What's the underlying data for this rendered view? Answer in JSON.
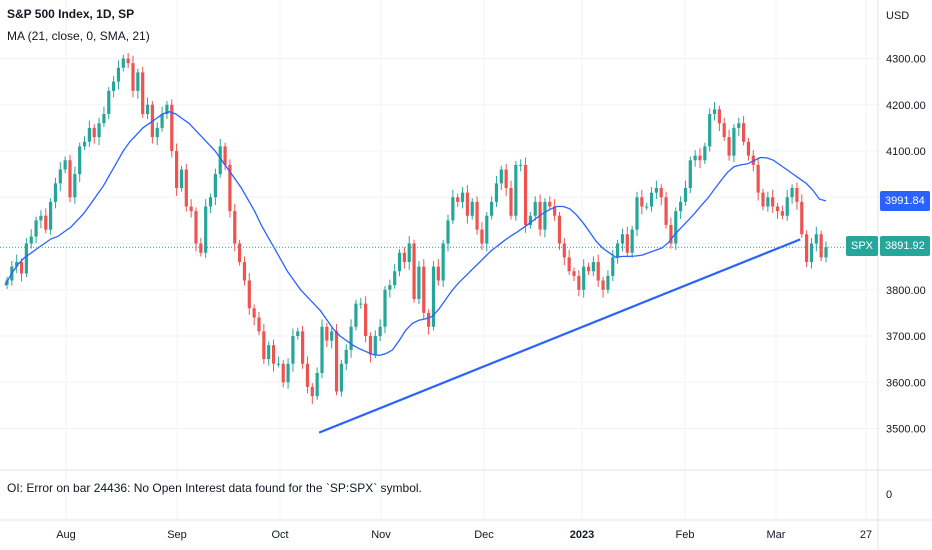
{
  "legend": {
    "title": "S&P 500 Index, 1D, SP",
    "ma": "MA (21, close, 0, SMA, 21)"
  },
  "oi_error": "OI: Error on bar 24436: No Open Interest data found for the `SP:SPX` symbol.",
  "currency": "USD",
  "tags": {
    "ma_value": "3991.84",
    "symbol": "SPX",
    "price": "3891.92"
  },
  "oi_axis_label": "0",
  "colors": {
    "up": "#26a69a",
    "down": "#ef5350",
    "ma": "#2962ff",
    "trendline": "#2962ff",
    "price_tag": "#26a69a",
    "ma_tag": "#2962ff"
  },
  "chart_data": {
    "type": "candlestick",
    "title": "S&P 500 Index, 1D, SP",
    "ylabel": "USD",
    "ylim": [
      3430,
      4390
    ],
    "y_ticks": [
      3500,
      3600,
      3700,
      3800,
      3900,
      4000,
      4100,
      4200,
      4300
    ],
    "y_tick_labels": [
      "3500.00",
      "3600.00",
      "3700.00",
      "3800.00",
      "",
      "",
      "4100.00",
      "4200.00",
      "4300.00"
    ],
    "x_ticks": [
      "Aug",
      "Sep",
      "Oct",
      "Nov",
      "Dec",
      "2023",
      "Feb",
      "Mar",
      "27"
    ],
    "last_close": 3891.92,
    "ma_last": 3991.84,
    "ma_label": "MA (21, close, 0, SMA, 21)",
    "closes": [
      3820,
      3850,
      3860,
      3835,
      3900,
      3915,
      3950,
      3960,
      3930,
      3990,
      4030,
      4060,
      4080,
      4000,
      4050,
      4110,
      4120,
      4150,
      4130,
      4160,
      4180,
      4230,
      4250,
      4280,
      4300,
      4290,
      4230,
      4270,
      4180,
      4200,
      4130,
      4150,
      4180,
      4200,
      4100,
      4020,
      4060,
      3980,
      3970,
      3900,
      3880,
      3980,
      4000,
      4050,
      4110,
      4070,
      3970,
      3900,
      3860,
      3820,
      3760,
      3740,
      3710,
      3650,
      3680,
      3640,
      3640,
      3600,
      3640,
      3700,
      3710,
      3640,
      3590,
      3570,
      3620,
      3720,
      3690,
      3710,
      3580,
      3640,
      3670,
      3720,
      3770,
      3770,
      3700,
      3660,
      3700,
      3720,
      3800,
      3810,
      3840,
      3880,
      3860,
      3900,
      3780,
      3850,
      3750,
      3720,
      3850,
      3820,
      3900,
      3950,
      4000,
      3990,
      4010,
      3960,
      3990,
      3930,
      3900,
      3960,
      3990,
      4030,
      4060,
      4020,
      3960,
      4070,
      4070,
      3940,
      3960,
      3990,
      3930,
      3990,
      3980,
      3960,
      3900,
      3870,
      3840,
      3830,
      3800,
      3850,
      3840,
      3860,
      3820,
      3800,
      3830,
      3870,
      3900,
      3920,
      3880,
      3930,
      4000,
      3980,
      3980,
      4010,
      4020,
      4000,
      3940,
      3900,
      3970,
      3990,
      4020,
      4080,
      4090,
      4080,
      4110,
      4180,
      4190,
      4160,
      4130,
      4090,
      4150,
      4160,
      4120,
      4090,
      4070,
      4010,
      3980,
      4000,
      3980,
      3970,
      3960,
      4000,
      4020,
      3990,
      3920,
      3860,
      3900,
      3920,
      3870,
      3892
    ],
    "ma": [
      3810,
      3835,
      3855,
      3870,
      3880,
      3890,
      3900,
      3910,
      3915,
      3925,
      3935,
      3950,
      3965,
      3985,
      4005,
      4025,
      4050,
      4075,
      4100,
      4120,
      4135,
      4150,
      4160,
      4170,
      4180,
      4185,
      4180,
      4170,
      4160,
      4145,
      4130,
      4115,
      4100,
      4080,
      4060,
      4040,
      4020,
      3995,
      3970,
      3940,
      3915,
      3890,
      3865,
      3840,
      3820,
      3800,
      3785,
      3770,
      3755,
      3735,
      3715,
      3700,
      3690,
      3680,
      3672,
      3666,
      3660,
      3658,
      3662,
      3670,
      3690,
      3712,
      3727,
      3734,
      3737,
      3742,
      3757,
      3777,
      3797,
      3814,
      3828,
      3842,
      3856,
      3870,
      3884,
      3895,
      3906,
      3916,
      3925,
      3935,
      3945,
      3956,
      3966,
      3974,
      3980,
      3980,
      3975,
      3962,
      3945,
      3925,
      3905,
      3890,
      3880,
      3870,
      3872,
      3872,
      3873,
      3875,
      3880,
      3885,
      3890,
      3902,
      3920,
      3935,
      3950,
      3965,
      3982,
      3998,
      4017,
      4036,
      4054,
      4066,
      4070,
      4072,
      4079,
      4086,
      4085,
      4080,
      4070,
      4060,
      4050,
      4040,
      4030,
      4015,
      3996,
      3992
    ],
    "trendline": {
      "start": {
        "date": "2022-10-13",
        "value": 3491
      },
      "end": {
        "date": "2023-03-08",
        "value": 3909
      }
    }
  }
}
